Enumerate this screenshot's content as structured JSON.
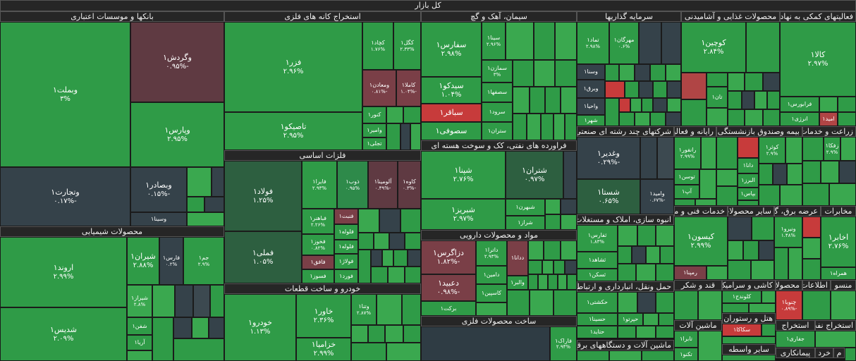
{
  "title": "کل بازار",
  "sectors": {
    "banks": "بانکها و موسسات اعتباری",
    "mining": "استخراج کانه های فلزی",
    "cement": "سیمان، آهک و گچ",
    "investment": "سرمایه گذاریها",
    "food": "محصولات غذایی و آشامیدنی",
    "support": "فعالیتهای کمکی به نهادهای مالی",
    "basemetals": "فلزات اساسی",
    "chemicals": "محصولات شیمیایی",
    "refinery": "فراورده های نفتی، کک و سوخت هسته ای",
    "multi": "شرکتهای چند رشته ای صنعتی",
    "it": "رایانه و فعالیتهای وابسته",
    "insurance": "بیمه وصندوق بازنشستگی",
    "agri": "زراعت و خدمات",
    "pharma": "مواد و محصولات دارویی",
    "realestate": "انبوه سازی، املاک و مستغلات",
    "techservices": "خدمات فنی و مهندسی",
    "othermining": "سایر محصولات",
    "utilities": "عرضه برق، گاز",
    "telecom": "مخابرات",
    "auto": "خودرو و ساخت قطعات",
    "transport": "حمل ونقل، انبارداری و ارتباطات",
    "metalproducts": "ساخت محصولات فلزی",
    "machinery": "ماشین آلات و دستگاههای برقی",
    "tiles": "کاشی و سرامیک",
    "sugar": "قند و شکر",
    "press": "محصولات کاغذی",
    "publish": "اطلاعات",
    "monsu": "منسو",
    "equipment": "ماشین آلات",
    "hotel": "هتل و رستوران",
    "extract": "استخراج",
    "other": "سایر واسطه",
    "contractors": "پیمانکاری",
    "aboutstone": "استخراج نفت",
    "crafts": "خرد",
    "m": "م"
  },
  "tiles": {
    "vbmellat": {
      "name": "وبملت۱",
      "pct": "۳%"
    },
    "vgardesh": {
      "name": "وگردش۱",
      "pct": "-۰.۹۵%"
    },
    "vpars": {
      "name": "وپارس۱",
      "pct": "۲.۹۵%"
    },
    "vtejarat": {
      "name": "وتجارت۱",
      "pct": "-۰.۱۷%"
    },
    "vbsader": {
      "name": "وبصادر۱",
      "pct": "-۰.۱۵%"
    },
    "vsina": {
      "name": "وسینا۱",
      "pct": ""
    },
    "fezar": {
      "name": "فزر۱",
      "pct": "۲.۹۶%"
    },
    "kchad": {
      "name": "کچاد۱",
      "pct": "۱.۷۶%"
    },
    "kgol": {
      "name": "کگل۱",
      "pct": "۲.۳۳%"
    },
    "vmaadan": {
      "name": "ومعادن۱",
      "pct": "-۰.۸۱%"
    },
    "kamla": {
      "name": "کاملا۱",
      "pct": "-۱.۰۴%"
    },
    "knor": {
      "name": "کنور۱",
      "pct": ""
    },
    "tasiko": {
      "name": "تاصیکو۱",
      "pct": "۲.۹۵%"
    },
    "vamir": {
      "name": "وامیر۱",
      "pct": ""
    },
    "tajl": {
      "name": "تجلی۱",
      "pct": ""
    },
    "sfars": {
      "name": "سفارس۱",
      "pct": "۲.۹۸%"
    },
    "sina1": {
      "name": "سینا۱",
      "pct": "۲.۹۶%"
    },
    "smazan": {
      "name": "سمازن۱",
      "pct": "۳%"
    },
    "sefha": {
      "name": "سصفها۱",
      "pct": ""
    },
    "sidko": {
      "name": "سیدکو۱",
      "pct": "۱.۰۴%"
    },
    "sbagher": {
      "name": "سباقر۱",
      "pct": ""
    },
    "srod": {
      "name": "سرود۱",
      "pct": ""
    },
    "sofi": {
      "name": "سصوفی۱",
      "pct": ""
    },
    "stran": {
      "name": "ستران۱",
      "pct": ""
    },
    "tamad": {
      "name": "تماد۱",
      "pct": "۲.۹۸%"
    },
    "mhrgan": {
      "name": "مهرگان۱",
      "pct": "۰.۶%"
    },
    "vsna": {
      "name": "وسنا۱",
      "pct": ""
    },
    "vbargh": {
      "name": "وبرق۱",
      "pct": ""
    },
    "vahya": {
      "name": "واحیا۱",
      "pct": ""
    },
    "shahr": {
      "name": "شهر۱",
      "pct": ""
    },
    "kochin": {
      "name": "کوچین۱",
      "pct": "۲.۸۴%"
    },
    "tan": {
      "name": "تان۱",
      "pct": ""
    },
    "kala": {
      "name": "کالا۱",
      "pct": "۲.۹۷%"
    },
    "farabors": {
      "name": "فرابورس۱",
      "pct": ""
    },
    "enrzhi": {
      "name": "انرژی۱",
      "pct": ""
    },
    "amid": {
      "name": "امید۱",
      "pct": ""
    },
    "folad": {
      "name": "فولاد۱",
      "pct": "۱.۲۵%"
    },
    "fabira": {
      "name": "فایرا۱",
      "pct": "۲.۹۳%"
    },
    "zob": {
      "name": "ذوب۱",
      "pct": "۰.۹۵%"
    },
    "alominum": {
      "name": "آلومینا۱",
      "pct": "-۰.۴۹%"
    },
    "kave": {
      "name": "کاوه۱",
      "pct": "-۰.۳%"
    },
    "fmeli": {
      "name": "فملی۱",
      "pct": "۱.۰۵%"
    },
    "fbahnar": {
      "name": "فباهنر۱",
      "pct": "۲.۲۶%"
    },
    "fnbt": {
      "name": "فنبت۱",
      "pct": ""
    },
    "fkhoz": {
      "name": "فخوز۱",
      "pct": "۰.۸۲%"
    },
    "flole": {
      "name": "فلوله۱",
      "pct": ""
    },
    "fakhgh": {
      "name": "فافق۱",
      "pct": ""
    },
    "felez": {
      "name": "فلوله۱",
      "pct": ""
    },
    "fsoz": {
      "name": "فسوز۱",
      "pct": ""
    },
    "folazh": {
      "name": "فولاژ۱",
      "pct": ""
    },
    "fvard": {
      "name": "فورد۱",
      "pct": ""
    },
    "arvand": {
      "name": "اروند۱",
      "pct": "۲.۹۹%"
    },
    "shiran": {
      "name": "شیران۱",
      "pct": "۲.۸۸%"
    },
    "fars": {
      "name": "فارس۱",
      "pct": "۰.۲%"
    },
    "jam": {
      "name": "جم۱",
      "pct": "۲.۹%"
    },
    "shiraz": {
      "name": "شیراز۱",
      "pct": "۲.۸%"
    },
    "shfan": {
      "name": "شفن۱",
      "pct": ""
    },
    "arya": {
      "name": "آریا۱",
      "pct": ""
    },
    "shdis": {
      "name": "شدیس۱",
      "pct": "۲.۰۹%"
    },
    "shana": {
      "name": "شپنا۱",
      "pct": "۲.۷۶%"
    },
    "shtran": {
      "name": "شتران۱",
      "pct": "۰.۹۷%"
    },
    "shbhran": {
      "name": "شبهرن۱",
      "pct": ""
    },
    "shbriz": {
      "name": "شبریز۱",
      "pct": "۲.۹۷%"
    },
    "shraz": {
      "name": "شراز۱",
      "pct": ""
    },
    "vghadir": {
      "name": "وغدیر۱",
      "pct": "-۰.۲۹%"
    },
    "vamid": {
      "name": "وامید۱",
      "pct": "-۰.۶۷%"
    },
    "shsta": {
      "name": "شستا۱",
      "pct": "۰.۶۵%"
    },
    "ranfor": {
      "name": "رانفور۱",
      "pct": "۲.۹۹%"
    },
    "tosn": {
      "name": "توسن۱",
      "pct": ""
    },
    "ap": {
      "name": "آپ۱",
      "pct": ""
    },
    "dana": {
      "name": "دانا۱",
      "pct": ""
    },
    "albrz": {
      "name": "البرز۱",
      "pct": ""
    },
    "bpas": {
      "name": "بپاس۱",
      "pct": ""
    },
    "kowsar": {
      "name": "کوثر۱",
      "pct": "۲.۹%"
    },
    "zafka": {
      "name": "زفکا۱",
      "pct": "۲.۹%"
    },
    "dzagrs": {
      "name": "دزاگرس۱",
      "pct": "-۱.۸۲%"
    },
    "dtra": {
      "name": "داترا۱",
      "pct": "۲.۹۳%"
    },
    "dmin": {
      "name": "دامین۱",
      "pct": ""
    },
    "dabid": {
      "name": "دعبید۱",
      "pct": "-۰.۹۸%"
    },
    "kaspin": {
      "name": "کاسپین۱",
      "pct": ""
    },
    "barkt": {
      "name": "برکت۱",
      "pct": ""
    },
    "ddana": {
      "name": "ددانا۱",
      "pct": ""
    },
    "valbr": {
      "name": "والبر۱",
      "pct": ""
    },
    "tfars": {
      "name": "ثفارس۱",
      "pct": "۱.۸۳%"
    },
    "tshahd": {
      "name": "ثشاهد۱",
      "pct": ""
    },
    "tskan": {
      "name": "ثسکن۱",
      "pct": ""
    },
    "kisvn": {
      "name": "کیسون۱",
      "pct": "۲.۹۹%"
    },
    "rmpna": {
      "name": "رمپنا۱",
      "pct": ""
    },
    "vniro": {
      "name": "ونیرو۱",
      "pct": "۱.۴۸%"
    },
    "akhabr": {
      "name": "اخابر۱",
      "pct": "۲.۷۶%"
    },
    "hamra": {
      "name": "همراه۱",
      "pct": ""
    },
    "khodro": {
      "name": "خودرو۱",
      "pct": "۱.۱۳%"
    },
    "khavar": {
      "name": "خاور۱",
      "pct": "۲.۳۶%"
    },
    "vtna": {
      "name": "وتنا۱",
      "pct": "۲.۸۷%"
    },
    "khzamya": {
      "name": "خزامیا۱",
      "pct": "۲.۹۹%"
    },
    "hkshti": {
      "name": "حکشتی۱",
      "pct": ""
    },
    "hsina": {
      "name": "حسینا۱",
      "pct": ""
    },
    "htyd": {
      "name": "حتاید۱",
      "pct": ""
    },
    "hprta": {
      "name": "حپرتو۱",
      "pct": ""
    },
    "fardar": {
      "name": "فاراک۱",
      "pct": "۲.۹۴%"
    },
    "chnoba": {
      "name": "چنوبا۱",
      "pct": "-۰.۸۹%"
    },
    "klvndj": {
      "name": "کلوندج۱",
      "pct": ""
    },
    "skaka": {
      "name": "سکاکا۱",
      "pct": ""
    },
    "jfari": {
      "name": "جفاری۱",
      "pct": ""
    },
    "tabra": {
      "name": "تابرا۱",
      "pct": ""
    },
    "tkno": {
      "name": "تکنو۱",
      "pct": ""
    }
  }
}
